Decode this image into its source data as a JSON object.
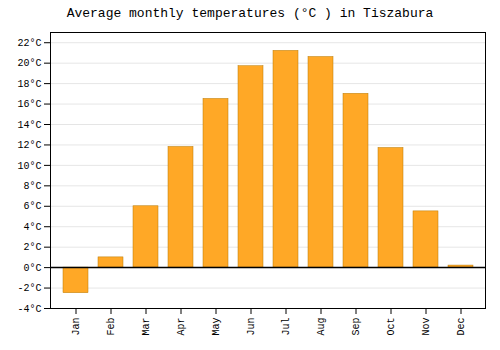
{
  "chart_data": {
    "type": "bar",
    "title": "Average monthly temperatures (°C ) in Tiszabura",
    "categories": [
      "Jan",
      "Feb",
      "Mar",
      "Apr",
      "May",
      "Jun",
      "Jul",
      "Aug",
      "Sep",
      "Oct",
      "Nov",
      "Dec"
    ],
    "values": [
      -2.5,
      1.0,
      6.0,
      11.8,
      16.5,
      19.7,
      21.2,
      20.6,
      17.0,
      11.7,
      5.5,
      0.2
    ],
    "color": "#FFA826",
    "ylim": [
      -4,
      23
    ],
    "yticks": [
      {
        "value": -4,
        "label": "-4°C"
      },
      {
        "value": -2,
        "label": "-2°C"
      },
      {
        "value": 0,
        "label": "0°C"
      },
      {
        "value": 2,
        "label": "2°C"
      },
      {
        "value": 4,
        "label": "4°C"
      },
      {
        "value": 6,
        "label": "6°C"
      },
      {
        "value": 8,
        "label": "8°C"
      },
      {
        "value": 10,
        "label": "10°C"
      },
      {
        "value": 12,
        "label": "12°C"
      },
      {
        "value": 14,
        "label": "14°C"
      },
      {
        "value": 16,
        "label": "16°C"
      },
      {
        "value": 18,
        "label": "18°C"
      },
      {
        "value": 20,
        "label": "20°C"
      },
      {
        "value": 22,
        "label": "22°C"
      }
    ],
    "grid": true
  }
}
